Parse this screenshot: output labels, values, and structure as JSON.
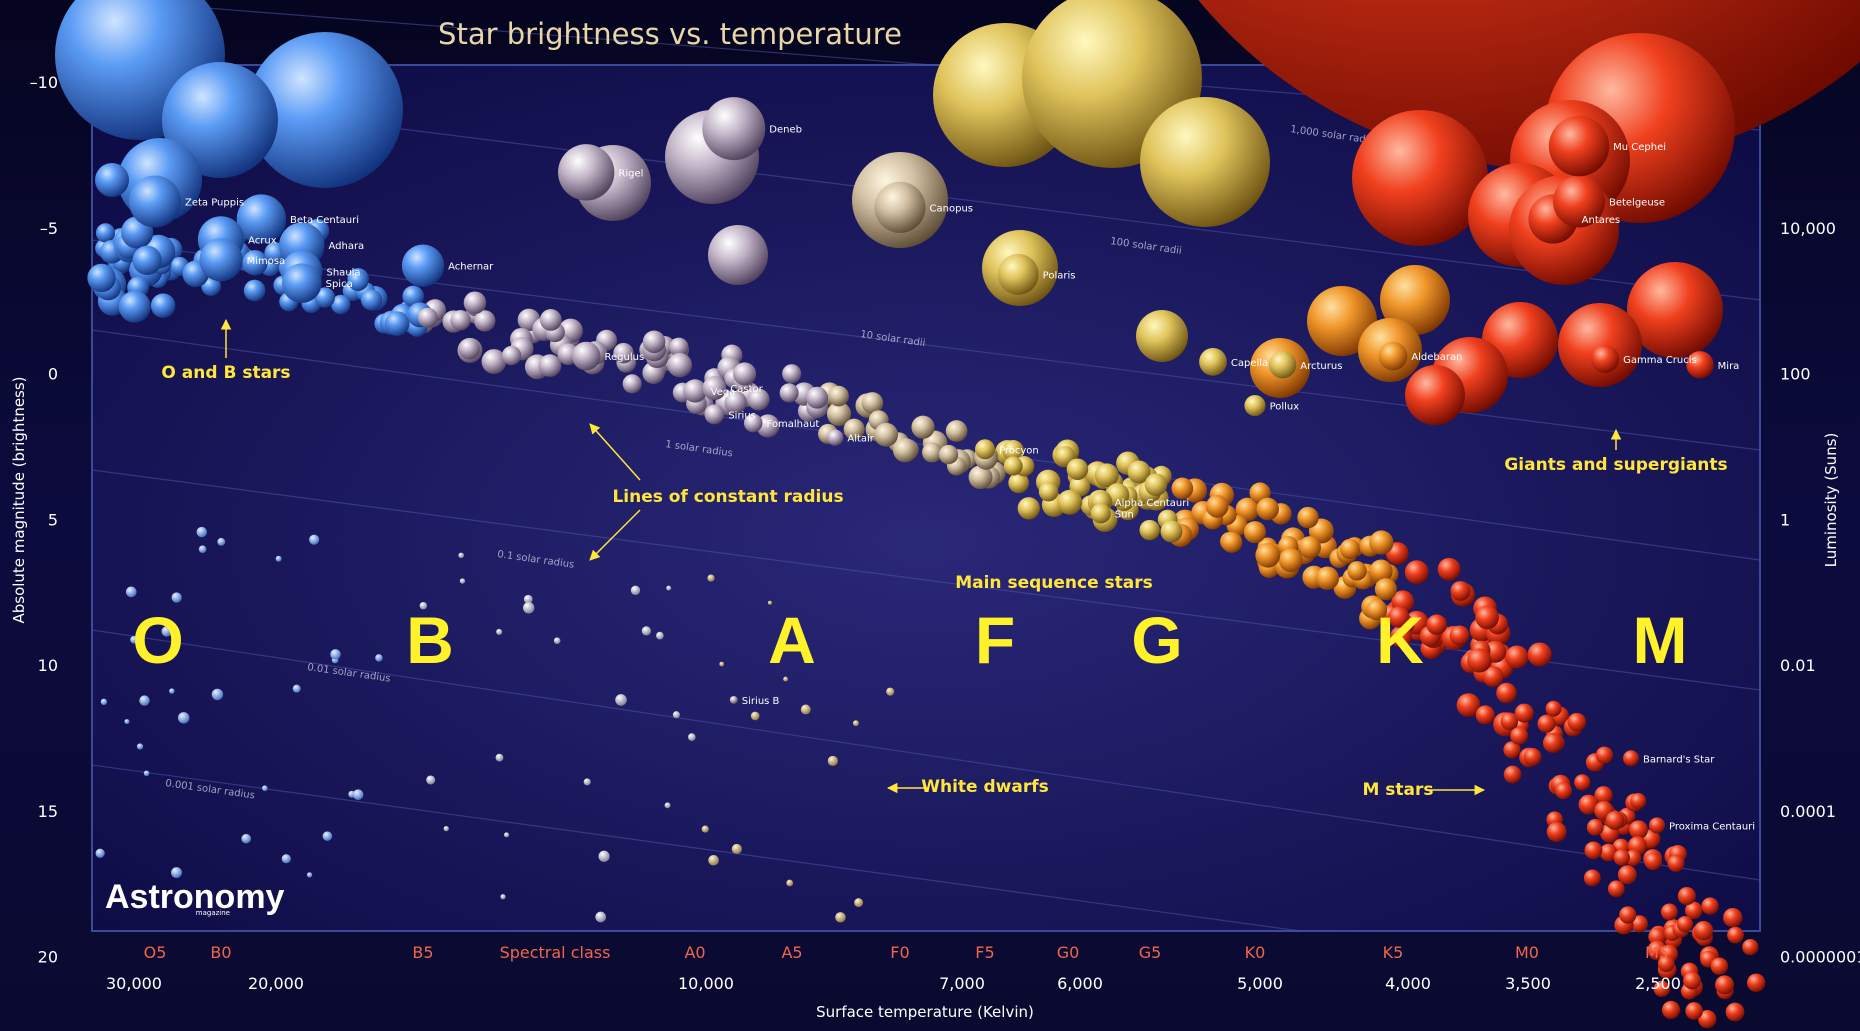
{
  "chart_data": {
    "type": "scatter",
    "title": "Star brightness vs. temperature",
    "xlabel": "Surface temperature (Kelvin)",
    "ylabel_left": "Absolute magnitude (brightness)",
    "ylabel_right": "Luminosity (Suns)",
    "y_left_ticks": [
      "–10",
      "–5",
      "0",
      "5",
      "10",
      "15",
      "20"
    ],
    "y_left_values": [
      -10,
      -5,
      0,
      5,
      10,
      15,
      20
    ],
    "y_right_ticks": [
      "10,000",
      "100",
      "1",
      "0.01",
      "0.0001",
      "0.0000001"
    ],
    "y_right_magnitudes": [
      -5,
      0,
      5,
      10,
      15,
      20
    ],
    "spectral_title": "Spectral class",
    "spectral_classes": [
      "O5",
      "B0",
      "B5",
      "A0",
      "A5",
      "F0",
      "F5",
      "G0",
      "G5",
      "K0",
      "K5",
      "M0",
      "M5"
    ],
    "temperatures": [
      "30,000",
      "20,000",
      "10,000",
      "7,000",
      "6,000",
      "5,000",
      "4,000",
      "3,500",
      "2,500"
    ],
    "class_letters": [
      "O",
      "B",
      "A",
      "F",
      "G",
      "K",
      "M"
    ],
    "radius_lines": [
      "1,000 solar radii",
      "100 solar radii",
      "10 solar radii",
      "1 solar radius",
      "0.1 solar radius",
      "0.01 solar radius",
      "0.001 solar radius"
    ],
    "annotations": [
      "O and B stars",
      "Lines of constant radius",
      "Main sequence stars",
      "White dwarfs",
      "M stars",
      "Giants and supergiants"
    ],
    "named_stars": [
      {
        "name": "Zeta Puppis",
        "mag": -5.9,
        "class": "O5"
      },
      {
        "name": "Beta Centauri",
        "mag": -5.3,
        "class": "B1"
      },
      {
        "name": "Acrux",
        "mag": -4.6,
        "class": "B0"
      },
      {
        "name": "Adhara",
        "mag": -4.4,
        "class": "B2"
      },
      {
        "name": "Mimosa",
        "mag": -3.9,
        "class": "B0"
      },
      {
        "name": "Achernar",
        "mag": -3.7,
        "class": "B5"
      },
      {
        "name": "Shaula",
        "mag": -3.5,
        "class": "B2"
      },
      {
        "name": "Spica",
        "mag": -3.1,
        "class": "B2"
      },
      {
        "name": "Rigel",
        "mag": -6.9,
        "class": "B8"
      },
      {
        "name": "Deneb",
        "mag": -8.4,
        "class": "A2"
      },
      {
        "name": "Canopus",
        "mag": -5.7,
        "class": "F0"
      },
      {
        "name": "Polaris",
        "mag": -3.4,
        "class": "F7"
      },
      {
        "name": "Regulus",
        "mag": -0.6,
        "class": "B8"
      },
      {
        "name": "Vega",
        "mag": 0.6,
        "class": "A0"
      },
      {
        "name": "Castor",
        "mag": 0.5,
        "class": "A1"
      },
      {
        "name": "Sirius",
        "mag": 1.4,
        "class": "A1"
      },
      {
        "name": "Fomalhaut",
        "mag": 1.7,
        "class": "A3"
      },
      {
        "name": "Altair",
        "mag": 2.2,
        "class": "A7"
      },
      {
        "name": "Procyon",
        "mag": 2.6,
        "class": "F5"
      },
      {
        "name": "Alpha Centauri",
        "mag": 4.4,
        "class": "G2"
      },
      {
        "name": "Sun",
        "mag": 4.8,
        "class": "G2"
      },
      {
        "name": "Capella",
        "mag": -0.4,
        "class": "G8"
      },
      {
        "name": "Arcturus",
        "mag": -0.3,
        "class": "K1"
      },
      {
        "name": "Pollux",
        "mag": 1.1,
        "class": "K0"
      },
      {
        "name": "Aldebaran",
        "mag": -0.6,
        "class": "K5"
      },
      {
        "name": "Antares",
        "mag": -5.3,
        "class": "M1"
      },
      {
        "name": "Betelgeuse",
        "mag": -5.9,
        "class": "M2"
      },
      {
        "name": "Mu Cephei",
        "mag": -7.8,
        "class": "M2"
      },
      {
        "name": "Mira",
        "mag": -0.3,
        "class": "M7"
      },
      {
        "name": "Gamma Crucis",
        "mag": -0.5,
        "class": "M3"
      },
      {
        "name": "Sirius B",
        "mag": 11.2,
        "class": "A2"
      },
      {
        "name": "Barnard's Star",
        "mag": 13.2,
        "class": "M4"
      },
      {
        "name": "Proxima Centauri",
        "mag": 15.5,
        "class": "M5"
      }
    ]
  },
  "brand": {
    "logo": "Astronomy",
    "logo_sub": "magazine"
  },
  "colors": {
    "background": "#0d0b3a",
    "plot_border": "#3a4a9a",
    "annotation": "#ffe63a",
    "spectral_class": "#f0664a",
    "class_letter": "#fff12a"
  }
}
